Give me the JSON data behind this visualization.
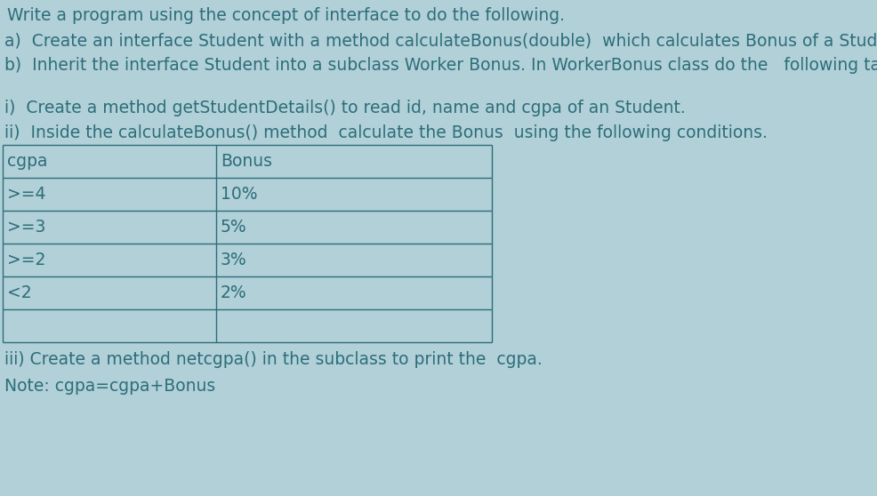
{
  "bg_color": "#b2d0d8",
  "text_color": "#2c6e7a",
  "title_line": "Write a program using the concept of interface to do the following.",
  "line_a": "a)  Create an interface Student with a method calculateBonus(double)  which calculates Bonus of a Student",
  "line_b": "b)  Inherit the interface Student into a subclass Worker Bonus. In WorkerBonus class do the   following tasks:",
  "line_i": "i)  Create a method getStudentDetails() to read id, name and cgpa of an Student.",
  "line_ii": "ii)  Inside the calculateBonus() method  calculate the Bonus  using the following conditions.",
  "table_headers": [
    "cgpa",
    "Bonus"
  ],
  "table_rows": [
    [
      ">=4",
      "10%"
    ],
    [
      ">=3",
      "5%"
    ],
    [
      ">=2",
      "3%"
    ],
    [
      "<2",
      "2%"
    ],
    [
      "",
      ""
    ]
  ],
  "line_iii": "iii) Create a method netcgpa() in the subclass to print the  cgpa.",
  "line_note": "Note: cgpa=cgpa+Bonus",
  "font_size": 13.5,
  "table_font_size": 13.5
}
